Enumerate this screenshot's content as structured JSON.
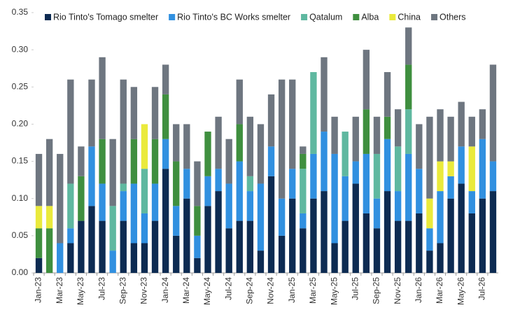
{
  "chart_data": {
    "type": "stacked-bar",
    "categories": [
      "Jan-23",
      null,
      "Mar-23",
      null,
      "May-23",
      null,
      "Jul-23",
      null,
      "Sep-23",
      null,
      "Nov-23",
      null,
      "Jan-24",
      null,
      "Mar-24",
      null,
      "May-24",
      null,
      "Jul-24",
      null,
      "Sep-24",
      null,
      "Nov-24",
      null,
      "Jan-25",
      null,
      "Mar-25",
      null,
      "May-25",
      null,
      "Jul-25",
      null,
      "Sep-25",
      null,
      "Nov-25",
      null,
      "Jan-26",
      null,
      "Mar-26",
      null,
      "May-26",
      null,
      "Jul-26",
      null
    ],
    "series": [
      {
        "name": "Rio Tinto's Tomago smelter",
        "color": "#0d2b52",
        "values": [
          0.02,
          0,
          0,
          0.04,
          0.07,
          0.09,
          0.07,
          0,
          0.07,
          0.04,
          0.04,
          0.07,
          0.14,
          0.05,
          0.1,
          0.02,
          0.09,
          0.11,
          0.06,
          0.07,
          0.07,
          0.03,
          0.13,
          0.05,
          0.1,
          0.06,
          0.1,
          0.11,
          0.04,
          0.07,
          0.12,
          0.08,
          0.06,
          0.11,
          0.07,
          0.07,
          0.08,
          0.03,
          0.04,
          0.1,
          0.12,
          0.08,
          0.1,
          0.11
        ]
      },
      {
        "name": "Rio Tinto's BC Works smelter",
        "color": "#3190e0",
        "values": [
          0,
          0,
          0.04,
          0.02,
          0,
          0.08,
          0.05,
          0.03,
          0.04,
          0.08,
          0.04,
          0.05,
          0.04,
          0.04,
          0.04,
          0.03,
          0.04,
          0.03,
          0.06,
          0.08,
          0.04,
          0.09,
          0.04,
          0.05,
          0.04,
          0.02,
          0.06,
          0.08,
          0.12,
          0.06,
          0.03,
          0.08,
          0.04,
          0.07,
          0.04,
          0.09,
          0.06,
          0.03,
          0.07,
          0.03,
          0.05,
          0.03,
          0.08,
          0.04
        ]
      },
      {
        "name": "Qatalum",
        "color": "#5fb8a0",
        "values": [
          0,
          0,
          0,
          0.06,
          0,
          0,
          0,
          0.06,
          0.01,
          0,
          0.06,
          0,
          0,
          0,
          0,
          0,
          0,
          0,
          0,
          0,
          0.02,
          0,
          0,
          0,
          0,
          0.06,
          0.11,
          0,
          0,
          0.06,
          0,
          0,
          0.06,
          0,
          0.06,
          0.06,
          0,
          0,
          0,
          0,
          0,
          0,
          0,
          0
        ]
      },
      {
        "name": "Alba",
        "color": "#3f8f3f",
        "values": [
          0.04,
          0.06,
          0,
          0,
          0.06,
          0,
          0.06,
          0,
          0,
          0.06,
          0,
          0.06,
          0.06,
          0.06,
          0,
          0.04,
          0.06,
          0,
          0,
          0.05,
          0,
          0,
          0,
          0,
          0,
          0.02,
          0,
          0,
          0,
          0,
          0,
          0.06,
          0,
          0.03,
          0,
          0.06,
          0,
          0,
          0,
          0,
          0,
          0,
          0,
          0
        ]
      },
      {
        "name": "China",
        "color": "#eaea3c",
        "values": [
          0.03,
          0.03,
          0,
          0,
          0,
          0,
          0,
          0,
          0,
          0,
          0.06,
          0,
          0,
          0,
          0,
          0,
          0,
          0,
          0,
          0,
          0,
          0,
          0,
          0,
          0,
          0,
          0,
          0,
          0,
          0,
          0,
          0,
          0,
          0,
          0,
          0,
          0,
          0.04,
          0.04,
          0.02,
          0,
          0.06,
          0,
          0
        ]
      },
      {
        "name": "Others",
        "color": "#6e7680",
        "values": [
          0.07,
          0.09,
          0.12,
          0.14,
          0.04,
          0.09,
          0.11,
          0.09,
          0.14,
          0.07,
          0,
          0.07,
          0.04,
          0.05,
          0.06,
          0.06,
          0,
          0.07,
          0.06,
          0.06,
          0.08,
          0.08,
          0.07,
          0.16,
          0.12,
          0.01,
          0,
          0.1,
          0.05,
          0,
          0.06,
          0.08,
          0.05,
          0.06,
          0.05,
          0.05,
          0.06,
          0.11,
          0.07,
          0.06,
          0.06,
          0.04,
          0.04,
          0.13
        ]
      }
    ],
    "ylim": [
      0,
      0.35
    ],
    "yticks": [
      {
        "value": 0,
        "label": "0.00"
      },
      0.05,
      {
        "value": 0.1,
        "label": "0.10"
      },
      0.15,
      {
        "value": 0.2,
        "label": "0.20"
      },
      0.25,
      {
        "value": 0.3,
        "label": "0.30"
      },
      0.35
    ],
    "grid": false,
    "legend": "top"
  }
}
